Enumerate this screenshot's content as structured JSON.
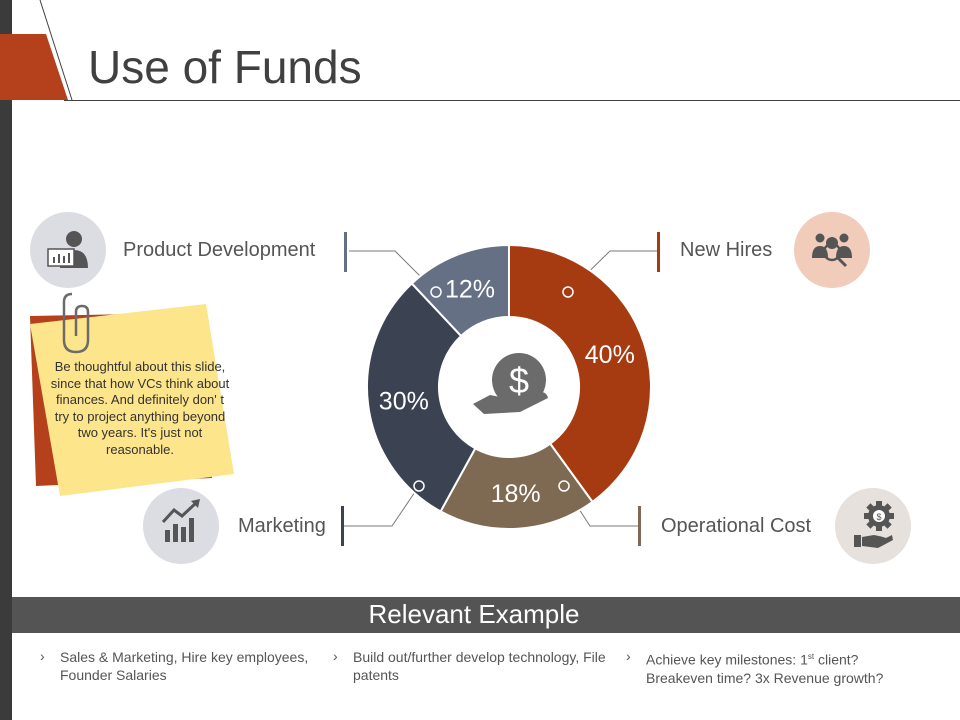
{
  "header": {
    "title": "Use of Funds"
  },
  "chart_data": {
    "type": "pie",
    "categories": [
      "New Hires",
      "Operational Cost",
      "Marketing",
      "Product Development"
    ],
    "values": [
      40,
      18,
      30,
      12
    ],
    "data_labels": [
      "40%",
      "18%",
      "30%",
      "12%"
    ],
    "colors": [
      "#a63b12",
      "#7e6a52",
      "#3b4252",
      "#667085"
    ]
  },
  "labels": {
    "product_development": "Product Development",
    "new_hires": "New Hires",
    "marketing": "Marketing",
    "operational_cost": "Operational Cost"
  },
  "note": {
    "text": "Be thoughtful about this slide, since that how VCs think about finances. And definitely don' t try to project anything beyond two years. It's just not reasonable."
  },
  "relevant": {
    "title": "Relevant Example",
    "b1": "Sales & Marketing, Hire key employees, Founder Salaries",
    "b2": "Build out/further develop technology, File patents",
    "b3_pre": "Achieve key milestones: 1",
    "b3_sup": "st",
    "b3_post": " client? Breakeven time? 3x Revenue growth?"
  },
  "icons": {
    "product_development": "presenter-icon",
    "new_hires": "team-search-icon",
    "marketing": "growth-chart-icon",
    "operational_cost": "gear-money-icon",
    "center": "dollar-hand-icon",
    "clip": "paperclip-icon"
  }
}
